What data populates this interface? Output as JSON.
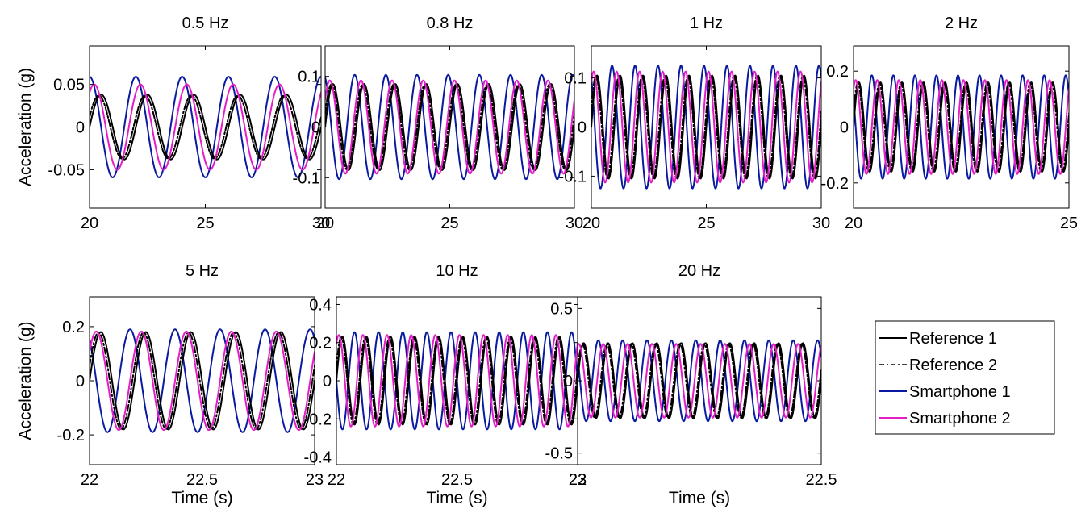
{
  "chart_data": [
    {
      "type": "line",
      "title": "0.5 Hz",
      "xlabel": "",
      "ylabel": "Acceleration (g)",
      "xlim": [
        20,
        30
      ],
      "ylim": [
        -0.095,
        0.095
      ],
      "xticks": [
        20,
        25,
        30
      ],
      "xtick_labels": [
        "20",
        "25",
        "30"
      ],
      "yticks": [
        -0.05,
        0,
        0.05
      ],
      "ytick_labels": [
        "-0.05",
        "0",
        "0.05"
      ],
      "series": [
        {
          "name": "Reference 1",
          "frequency_hz": 0.5,
          "amplitude": 0.038,
          "phase": 0.0
        },
        {
          "name": "Reference 2",
          "frequency_hz": 0.5,
          "amplitude": 0.037,
          "phase": 0.05
        },
        {
          "name": "Smartphone 1",
          "frequency_hz": 0.5,
          "amplitude": 0.059,
          "phase": 0.25
        },
        {
          "name": "Smartphone 2",
          "frequency_hz": 0.5,
          "amplitude": 0.05,
          "phase": 0.15
        }
      ]
    },
    {
      "type": "line",
      "title": "0.8 Hz",
      "xlabel": "",
      "ylabel": "",
      "xlim": [
        20,
        30
      ],
      "ylim": [
        -0.16,
        0.16
      ],
      "xticks": [
        20,
        25,
        30
      ],
      "xtick_labels": [
        "20",
        "25",
        "30"
      ],
      "yticks": [
        -0.1,
        0,
        0.1
      ],
      "ytick_labels": [
        "-0.1",
        "0",
        "0.1"
      ],
      "series": [
        {
          "name": "Reference 1",
          "frequency_hz": 0.8,
          "amplitude": 0.085,
          "phase": 0.0
        },
        {
          "name": "Reference 2",
          "frequency_hz": 0.8,
          "amplitude": 0.084,
          "phase": 0.05
        },
        {
          "name": "Smartphone 1",
          "frequency_hz": 0.8,
          "amplitude": 0.103,
          "phase": 0.3
        },
        {
          "name": "Smartphone 2",
          "frequency_hz": 0.8,
          "amplitude": 0.092,
          "phase": 0.1
        }
      ]
    },
    {
      "type": "line",
      "title": "1 Hz",
      "xlabel": "",
      "ylabel": "",
      "xlim": [
        20,
        30
      ],
      "ylim": [
        -0.165,
        0.165
      ],
      "xticks": [
        20,
        25,
        30
      ],
      "xtick_labels": [
        "20",
        "25",
        "30"
      ],
      "yticks": [
        -0.1,
        0,
        0.1
      ],
      "ytick_labels": [
        "-0.1",
        "0",
        "0.1"
      ],
      "series": [
        {
          "name": "Reference 1",
          "frequency_hz": 1.0,
          "amplitude": 0.105,
          "phase": 0.0
        },
        {
          "name": "Reference 2",
          "frequency_hz": 1.0,
          "amplitude": 0.104,
          "phase": 0.05
        },
        {
          "name": "Smartphone 1",
          "frequency_hz": 1.0,
          "amplitude": 0.125,
          "phase": 0.35
        },
        {
          "name": "Smartphone 2",
          "frequency_hz": 1.0,
          "amplitude": 0.113,
          "phase": 0.15
        }
      ]
    },
    {
      "type": "line",
      "title": "2 Hz",
      "xlabel": "",
      "ylabel": "",
      "xlim": [
        20,
        25
      ],
      "ylim": [
        -0.29,
        0.29
      ],
      "xticks": [
        20,
        25
      ],
      "xtick_labels": [
        "20",
        "25"
      ],
      "yticks": [
        -0.2,
        0,
        0.2
      ],
      "ytick_labels": [
        "-0.2",
        "0",
        "0.2"
      ],
      "series": [
        {
          "name": "Reference 1",
          "frequency_hz": 2.0,
          "amplitude": 0.16,
          "phase": 0.0
        },
        {
          "name": "Reference 2",
          "frequency_hz": 2.0,
          "amplitude": 0.158,
          "phase": 0.05
        },
        {
          "name": "Smartphone 1",
          "frequency_hz": 2.0,
          "amplitude": 0.185,
          "phase": 0.4
        },
        {
          "name": "Smartphone 2",
          "frequency_hz": 2.0,
          "amplitude": 0.168,
          "phase": 0.15
        }
      ]
    },
    {
      "type": "line",
      "title": "5 Hz",
      "xlabel": "Time (s)",
      "ylabel": "Acceleration (g)",
      "xlim": [
        22,
        23
      ],
      "ylim": [
        -0.31,
        0.31
      ],
      "xticks": [
        22,
        22.5,
        23
      ],
      "xtick_labels": [
        "22",
        "22.5",
        "23"
      ],
      "yticks": [
        -0.2,
        0,
        0.2
      ],
      "ytick_labels": [
        "-0.2",
        "0",
        "0.2"
      ],
      "series": [
        {
          "name": "Reference 1",
          "frequency_hz": 5.0,
          "amplitude": 0.18,
          "phase": 0.0
        },
        {
          "name": "Reference 2",
          "frequency_hz": 5.0,
          "amplitude": 0.178,
          "phase": 0.05
        },
        {
          "name": "Smartphone 1",
          "frequency_hz": 5.0,
          "amplitude": 0.19,
          "phase": 0.35
        },
        {
          "name": "Smartphone 2",
          "frequency_hz": 5.0,
          "amplitude": 0.182,
          "phase": 0.1
        }
      ]
    },
    {
      "type": "line",
      "title": "10 Hz",
      "xlabel": "Time (s)",
      "ylabel": "",
      "xlim": [
        22,
        23
      ],
      "ylim": [
        -0.44,
        0.44
      ],
      "xticks": [
        22,
        22.5,
        23
      ],
      "xtick_labels": [
        "22",
        "22.5",
        "23"
      ],
      "yticks": [
        -0.4,
        -0.2,
        0,
        0.2,
        0.4
      ],
      "ytick_labels": [
        "-0.4",
        "-0.2",
        "0",
        "0.2",
        "0.4"
      ],
      "series": [
        {
          "name": "Reference 1",
          "frequency_hz": 10.0,
          "amplitude": 0.23,
          "phase": 0.0
        },
        {
          "name": "Reference 2",
          "frequency_hz": 10.0,
          "amplitude": 0.228,
          "phase": 0.05
        },
        {
          "name": "Smartphone 1",
          "frequency_hz": 10.0,
          "amplitude": 0.255,
          "phase": 0.5
        },
        {
          "name": "Smartphone 2",
          "frequency_hz": 10.0,
          "amplitude": 0.24,
          "phase": 0.15
        }
      ]
    },
    {
      "type": "line",
      "title": "20 Hz",
      "xlabel": "Time (s)",
      "ylabel": "",
      "xlim": [
        22,
        22.5
      ],
      "ylim": [
        -0.58,
        0.58
      ],
      "xticks": [
        22,
        22.5
      ],
      "xtick_labels": [
        "22",
        "22.5"
      ],
      "yticks": [
        -0.5,
        0,
        0.5
      ],
      "ytick_labels": [
        "-0.5",
        "0",
        "0.5"
      ],
      "series": [
        {
          "name": "Reference 1",
          "frequency_hz": 20.0,
          "amplitude": 0.26,
          "phase": 0.0
        },
        {
          "name": "Reference 2",
          "frequency_hz": 20.0,
          "amplitude": 0.255,
          "phase": 0.05
        },
        {
          "name": "Smartphone 1",
          "frequency_hz": 20.0,
          "amplitude": 0.28,
          "phase": 0.4
        },
        {
          "name": "Smartphone 2",
          "frequency_hz": 20.0,
          "amplitude": 0.255,
          "phase": 0.2
        }
      ]
    }
  ],
  "legend": {
    "placement": "bottom-right",
    "entries": [
      {
        "label": "Reference 1",
        "color": "#000000",
        "style": "solid"
      },
      {
        "label": "Reference 2",
        "color": "#000000",
        "style": "dash-dot"
      },
      {
        "label": "Smartphone 1",
        "color": "#0a1aa0",
        "style": "solid"
      },
      {
        "label": "Smartphone 2",
        "color": "#e61ec8",
        "style": "solid"
      }
    ]
  },
  "series_colors": {
    "Reference 1": "#000000",
    "Reference 2": "#000000",
    "Smartphone 1": "#0a1aa0",
    "Smartphone 2": "#e61ec8"
  }
}
